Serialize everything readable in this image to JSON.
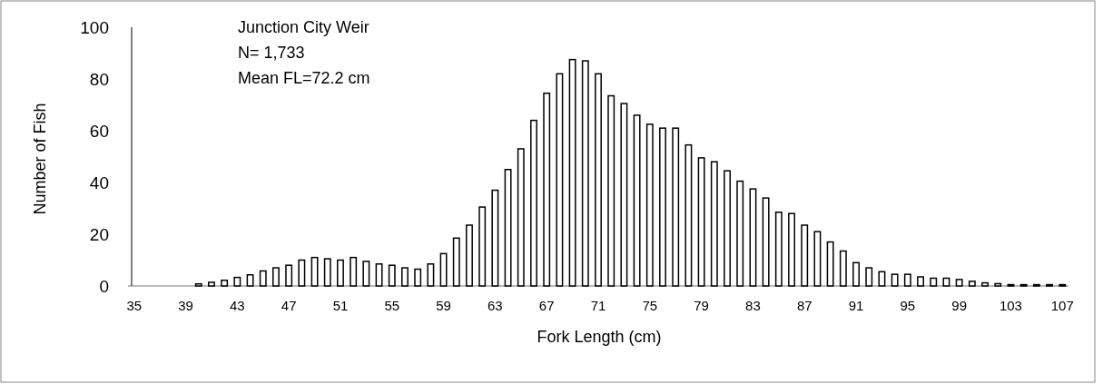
{
  "chart_data": {
    "type": "bar",
    "xlabel": "Fork Length (cm)",
    "ylabel": "Number of Fish",
    "annotations": [
      "Junction City Weir",
      "N= 1,733",
      "Mean FL=72.2 cm"
    ],
    "categories": [
      "35",
      null,
      null,
      null,
      "39",
      null,
      null,
      null,
      "43",
      null,
      null,
      null,
      "47",
      null,
      null,
      null,
      "51",
      null,
      null,
      null,
      "55",
      null,
      null,
      null,
      "59",
      null,
      null,
      null,
      "63",
      null,
      null,
      null,
      "67",
      null,
      null,
      null,
      "71",
      null,
      null,
      null,
      "75",
      null,
      null,
      null,
      "79",
      null,
      null,
      null,
      "83",
      null,
      null,
      null,
      "87",
      null,
      null,
      null,
      "91",
      null,
      null,
      null,
      "95",
      null,
      null,
      null,
      "99",
      null,
      null,
      null,
      "103",
      null,
      null,
      null,
      "107"
    ],
    "values": [
      0,
      0,
      0,
      0,
      0,
      0.8,
      1.4,
      2.2,
      3.3,
      4.3,
      5.8,
      7,
      8,
      10,
      11,
      10.5,
      10,
      11,
      9.5,
      8.5,
      8,
      7,
      6.5,
      8.5,
      12.5,
      18.5,
      23.5,
      30.5,
      37,
      45,
      53,
      64,
      74.5,
      82,
      87.5,
      87,
      82,
      73.5,
      70.5,
      66,
      62.5,
      61,
      61,
      54.5,
      49.5,
      48,
      44.5,
      40.5,
      37.5,
      34,
      28.5,
      28,
      23.5,
      21,
      17,
      13.5,
      9,
      7,
      5.5,
      4.5,
      4.5,
      3.5,
      3,
      3,
      2.5,
      1.8,
      1.2,
      0.9,
      0.5,
      0.5,
      0.5,
      0.5,
      0.5
    ],
    "color": "#ffffff",
    "ylim": [
      0,
      100
    ],
    "yticks": [
      0,
      20,
      40,
      60,
      80,
      100
    ],
    "grid": false
  }
}
